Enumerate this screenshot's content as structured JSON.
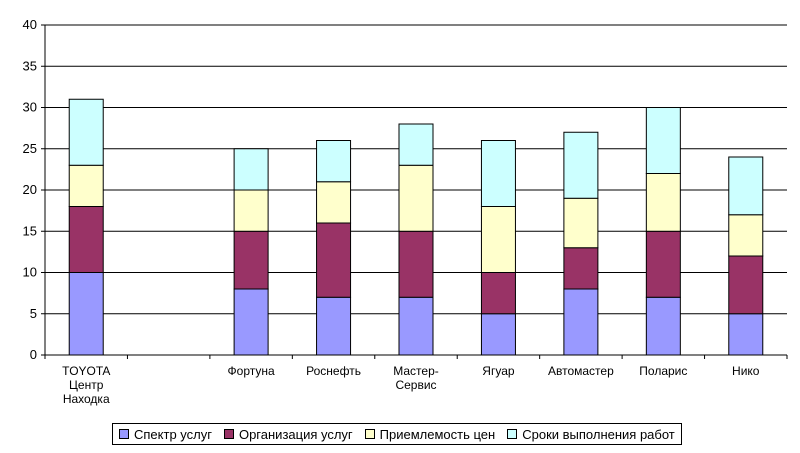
{
  "chart_data": {
    "type": "bar",
    "stacked": true,
    "categories": [
      [
        "TOYOTA",
        "Центр",
        "Находка"
      ],
      [
        ""
      ],
      [
        "Фортуна"
      ],
      [
        "Роснефть"
      ],
      [
        "Мастер-",
        "Сервис"
      ],
      [
        "Ягуар"
      ],
      [
        "Автомастер"
      ],
      [
        "Поларис"
      ],
      [
        "Нико"
      ]
    ],
    "series": [
      {
        "name": "Спектр услуг",
        "color": "#9999ff",
        "values": [
          10,
          0,
          8,
          7,
          7,
          5,
          8,
          7,
          5
        ]
      },
      {
        "name": "Организация услуг",
        "color": "#993366",
        "values": [
          8,
          0,
          7,
          9,
          8,
          5,
          5,
          8,
          7
        ]
      },
      {
        "name": "Приемлемость цен",
        "color": "#ffffcc",
        "values": [
          5,
          0,
          5,
          5,
          8,
          8,
          6,
          7,
          5
        ]
      },
      {
        "name": "Сроки выполнения работ",
        "color": "#ccffff",
        "values": [
          8,
          0,
          5,
          5,
          5,
          8,
          8,
          8,
          7
        ]
      }
    ],
    "ylim": [
      0,
      40
    ],
    "yticks": [
      0,
      5,
      10,
      15,
      20,
      25,
      30,
      35,
      40
    ],
    "grid": true,
    "legend": "bottom"
  }
}
